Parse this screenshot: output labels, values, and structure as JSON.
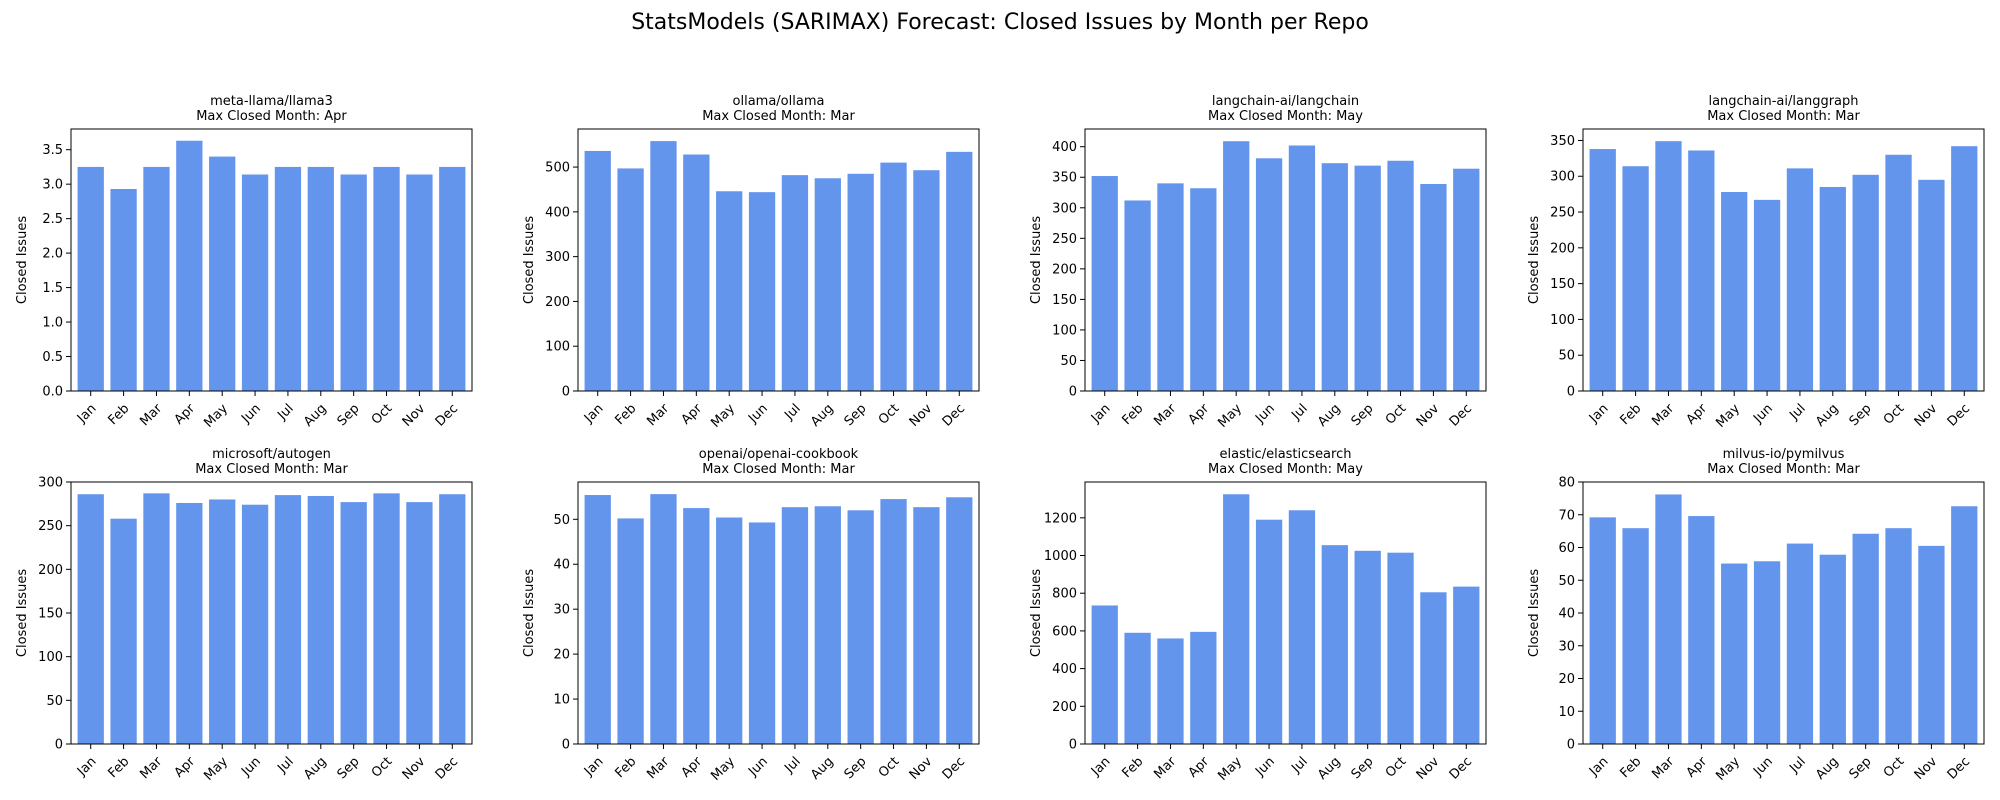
{
  "figure": {
    "title": "StatsModels (SARIMAX) Forecast: Closed Issues by Month per Repo"
  },
  "colors": {
    "bar": "#6495ED",
    "axis": "#000000"
  },
  "chart_data": [
    {
      "type": "bar",
      "title": "meta-llama/llama3",
      "subtitle": "Max Closed Month: Apr",
      "ylabel": "Closed Issues",
      "categories": [
        "Jan",
        "Feb",
        "Mar",
        "Apr",
        "May",
        "Jun",
        "Jul",
        "Aug",
        "Sep",
        "Oct",
        "Nov",
        "Dec"
      ],
      "values": [
        3.25,
        2.93,
        3.25,
        3.63,
        3.4,
        3.14,
        3.25,
        3.25,
        3.14,
        3.25,
        3.14,
        3.25
      ],
      "ylim": [
        0,
        3.8
      ],
      "yticks": [
        0.0,
        0.5,
        1.0,
        1.5,
        2.0,
        2.5,
        3.0,
        3.5
      ],
      "ytick_labels": [
        "0.0",
        "0.5",
        "1.0",
        "1.5",
        "2.0",
        "2.5",
        "3.0",
        "3.5"
      ]
    },
    {
      "type": "bar",
      "title": "ollama/ollama",
      "subtitle": "Max Closed Month: Mar",
      "ylabel": "Closed Issues",
      "categories": [
        "Jan",
        "Feb",
        "Mar",
        "Apr",
        "May",
        "Jun",
        "Jul",
        "Aug",
        "Sep",
        "Oct",
        "Nov",
        "Dec"
      ],
      "values": [
        536,
        497,
        558,
        528,
        446,
        444,
        482,
        475,
        485,
        510,
        493,
        534
      ],
      "ylim": [
        0,
        585
      ],
      "yticks": [
        0,
        100,
        200,
        300,
        400,
        500
      ],
      "ytick_labels": [
        "0",
        "100",
        "200",
        "300",
        "400",
        "500"
      ]
    },
    {
      "type": "bar",
      "title": "langchain-ai/langchain",
      "subtitle": "Max Closed Month: May",
      "ylabel": "Closed Issues",
      "categories": [
        "Jan",
        "Feb",
        "Mar",
        "Apr",
        "May",
        "Jun",
        "Jul",
        "Aug",
        "Sep",
        "Oct",
        "Nov",
        "Dec"
      ],
      "values": [
        352,
        312,
        340,
        332,
        409,
        381,
        402,
        373,
        369,
        377,
        339,
        364
      ],
      "ylim": [
        0,
        429
      ],
      "yticks": [
        0,
        50,
        100,
        150,
        200,
        250,
        300,
        350,
        400
      ],
      "ytick_labels": [
        "0",
        "50",
        "100",
        "150",
        "200",
        "250",
        "300",
        "350",
        "400"
      ]
    },
    {
      "type": "bar",
      "title": "langchain-ai/langgraph",
      "subtitle": "Max Closed Month: Mar",
      "ylabel": "Closed Issues",
      "categories": [
        "Jan",
        "Feb",
        "Mar",
        "Apr",
        "May",
        "Jun",
        "Jul",
        "Aug",
        "Sep",
        "Oct",
        "Nov",
        "Dec"
      ],
      "values": [
        338,
        314,
        349,
        336,
        278,
        267,
        311,
        285,
        302,
        330,
        295,
        342
      ],
      "ylim": [
        0,
        366
      ],
      "yticks": [
        0,
        50,
        100,
        150,
        200,
        250,
        300,
        350
      ],
      "ytick_labels": [
        "0",
        "50",
        "100",
        "150",
        "200",
        "250",
        "300",
        "350"
      ]
    },
    {
      "type": "bar",
      "title": "microsoft/autogen",
      "subtitle": "Max Closed Month: Mar",
      "ylabel": "Closed Issues",
      "categories": [
        "Jan",
        "Feb",
        "Mar",
        "Apr",
        "May",
        "Jun",
        "Jul",
        "Aug",
        "Sep",
        "Oct",
        "Nov",
        "Dec"
      ],
      "values": [
        286,
        258,
        287,
        276,
        280,
        274,
        285,
        284,
        277,
        287,
        277,
        286
      ],
      "ylim": [
        0,
        300
      ],
      "yticks": [
        0,
        50,
        100,
        150,
        200,
        250,
        300
      ],
      "ytick_labels": [
        "0",
        "50",
        "100",
        "150",
        "200",
        "250",
        "300"
      ]
    },
    {
      "type": "bar",
      "title": "openai/openai-cookbook",
      "subtitle": "Max Closed Month: Mar",
      "ylabel": "Closed Issues",
      "categories": [
        "Jan",
        "Feb",
        "Mar",
        "Apr",
        "May",
        "Jun",
        "Jul",
        "Aug",
        "Sep",
        "Oct",
        "Nov",
        "Dec"
      ],
      "values": [
        55.4,
        50.2,
        55.6,
        52.5,
        50.4,
        49.3,
        52.7,
        52.9,
        52.0,
        54.5,
        52.7,
        54.9
      ],
      "ylim": [
        0,
        58.3
      ],
      "yticks": [
        0,
        10,
        20,
        30,
        40,
        50
      ],
      "ytick_labels": [
        "0",
        "10",
        "20",
        "30",
        "40",
        "50"
      ]
    },
    {
      "type": "bar",
      "title": "elastic/elasticsearch",
      "subtitle": "Max Closed Month: May",
      "ylabel": "Closed Issues",
      "categories": [
        "Jan",
        "Feb",
        "Mar",
        "Apr",
        "May",
        "Jun",
        "Jul",
        "Aug",
        "Sep",
        "Oct",
        "Nov",
        "Dec"
      ],
      "values": [
        735,
        590,
        560,
        595,
        1325,
        1190,
        1240,
        1055,
        1025,
        1015,
        805,
        835
      ],
      "ylim": [
        0,
        1390
      ],
      "yticks": [
        0,
        200,
        400,
        600,
        800,
        1000,
        1200
      ],
      "ytick_labels": [
        "0",
        "200",
        "400",
        "600",
        "800",
        "1000",
        "1200"
      ]
    },
    {
      "type": "bar",
      "title": "milvus-io/pymilvus",
      "subtitle": "Max Closed Month: Mar",
      "ylabel": "Closed Issues",
      "categories": [
        "Jan",
        "Feb",
        "Mar",
        "Apr",
        "May",
        "Jun",
        "Jul",
        "Aug",
        "Sep",
        "Oct",
        "Nov",
        "Dec"
      ],
      "values": [
        69.2,
        65.9,
        76.2,
        69.6,
        55.1,
        55.8,
        61.2,
        57.8,
        64.2,
        65.9,
        60.5,
        72.6
      ],
      "ylim": [
        0,
        80
      ],
      "yticks": [
        0,
        10,
        20,
        30,
        40,
        50,
        60,
        70,
        80
      ],
      "ytick_labels": [
        "0",
        "10",
        "20",
        "30",
        "40",
        "50",
        "60",
        "70",
        "80"
      ]
    }
  ]
}
